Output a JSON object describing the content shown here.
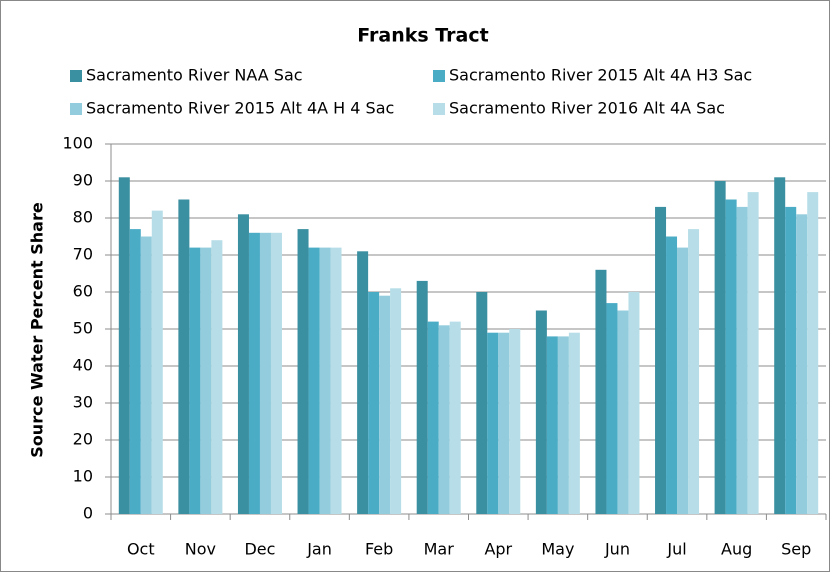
{
  "chart_data": {
    "type": "bar",
    "title": "Franks Tract",
    "y_label": "Source Water Percent Share",
    "categories": [
      "Oct",
      "Nov",
      "Dec",
      "Jan",
      "Feb",
      "Mar",
      "Apr",
      "May",
      "Jun",
      "Jul",
      "Aug",
      "Sep"
    ],
    "series": [
      {
        "name": "Sacramento River NAA Sac",
        "color": "#3a8fa0",
        "values": [
          91,
          85,
          81,
          77,
          71,
          63,
          60,
          55,
          66,
          83,
          90,
          91
        ]
      },
      {
        "name": "Sacramento River 2015 Alt 4A H3 Sac",
        "color": "#4bacc6",
        "values": [
          77,
          72,
          76,
          72,
          60,
          52,
          49,
          48,
          57,
          75,
          85,
          83
        ]
      },
      {
        "name": "Sacramento River 2015 Alt 4A H 4 Sac",
        "color": "#93cddd",
        "values": [
          75,
          72,
          76,
          72,
          59,
          51,
          49,
          48,
          55,
          72,
          83,
          81
        ]
      },
      {
        "name": "Sacramento River 2016 Alt 4A Sac",
        "color": "#b7dee8",
        "values": [
          82,
          74,
          76,
          72,
          61,
          52,
          50,
          49,
          60,
          77,
          87,
          87
        ]
      }
    ],
    "ylim": [
      0,
      100
    ],
    "yticks": [
      0,
      10,
      20,
      30,
      40,
      50,
      60,
      70,
      80,
      90,
      100
    ],
    "grid": true,
    "legend": "top"
  }
}
